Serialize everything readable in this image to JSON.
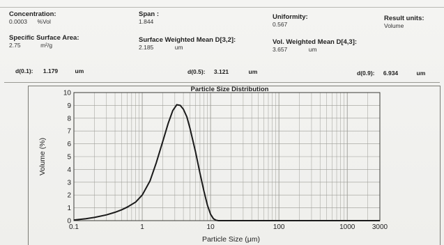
{
  "report": {
    "concentration": {
      "label": "Concentration:",
      "value": "0.0003",
      "unit": "%Vol"
    },
    "span": {
      "label": "Span :",
      "value": "1.844"
    },
    "uniformity": {
      "label": "Uniformity:",
      "value": "0.567"
    },
    "result_units": {
      "label": "Result units:",
      "value": "Volume"
    },
    "ssa": {
      "label": "Specific Surface Area:",
      "value": "2.75",
      "unit": "m²/g"
    },
    "d32": {
      "label": "Surface Weighted Mean D[3,2]:",
      "value": "2.185",
      "unit": "um"
    },
    "d43": {
      "label": "Vol. Weighted Mean D[4,3]:",
      "value": "3.657",
      "unit": "um"
    },
    "d01": {
      "label": "d(0.1):",
      "value": "1.179",
      "unit": "um"
    },
    "d05": {
      "label": "d(0.5):",
      "value": "3.121",
      "unit": "um"
    },
    "d09": {
      "label": "d(0.9):",
      "value": "6.934",
      "unit": "um"
    }
  },
  "chart_data": {
    "type": "line",
    "title": "Particle Size Distribution",
    "xlabel": "Particle Size (μm)",
    "ylabel": "Volume (%)",
    "x_scale": "log",
    "xlim": [
      0.1,
      3000
    ],
    "ylim": [
      0,
      10
    ],
    "x_tick_labels": [
      "0.1",
      "1",
      "10",
      "100",
      "1000",
      "3000"
    ],
    "x_tick_values": [
      0.1,
      1,
      10,
      100,
      1000,
      3000
    ],
    "y_ticks": [
      0,
      1,
      2,
      3,
      4,
      5,
      6,
      7,
      8,
      9,
      10
    ],
    "grid": true,
    "line_color": "#1a1a1a",
    "grid_color": "#9c9c96",
    "series": [
      {
        "x": [
          0.1,
          0.15,
          0.2,
          0.3,
          0.4,
          0.5,
          0.6,
          0.8,
          1.0,
          1.3,
          1.6,
          2.0,
          2.4,
          2.8,
          3.2,
          3.6,
          4.0,
          4.5,
          5.0,
          6.0,
          7.0,
          8.0,
          9.0,
          10.0,
          11.0,
          12.0,
          13.0,
          15.0,
          20.0,
          100,
          1000,
          3000
        ],
        "y": [
          0.05,
          0.15,
          0.25,
          0.45,
          0.65,
          0.85,
          1.05,
          1.45,
          2.0,
          3.1,
          4.5,
          6.2,
          7.6,
          8.6,
          9.05,
          9.0,
          8.7,
          8.1,
          7.2,
          5.4,
          3.7,
          2.3,
          1.2,
          0.5,
          0.15,
          0.03,
          0.0,
          0.0,
          0.0,
          0.0,
          0.0,
          0.0
        ]
      }
    ]
  }
}
